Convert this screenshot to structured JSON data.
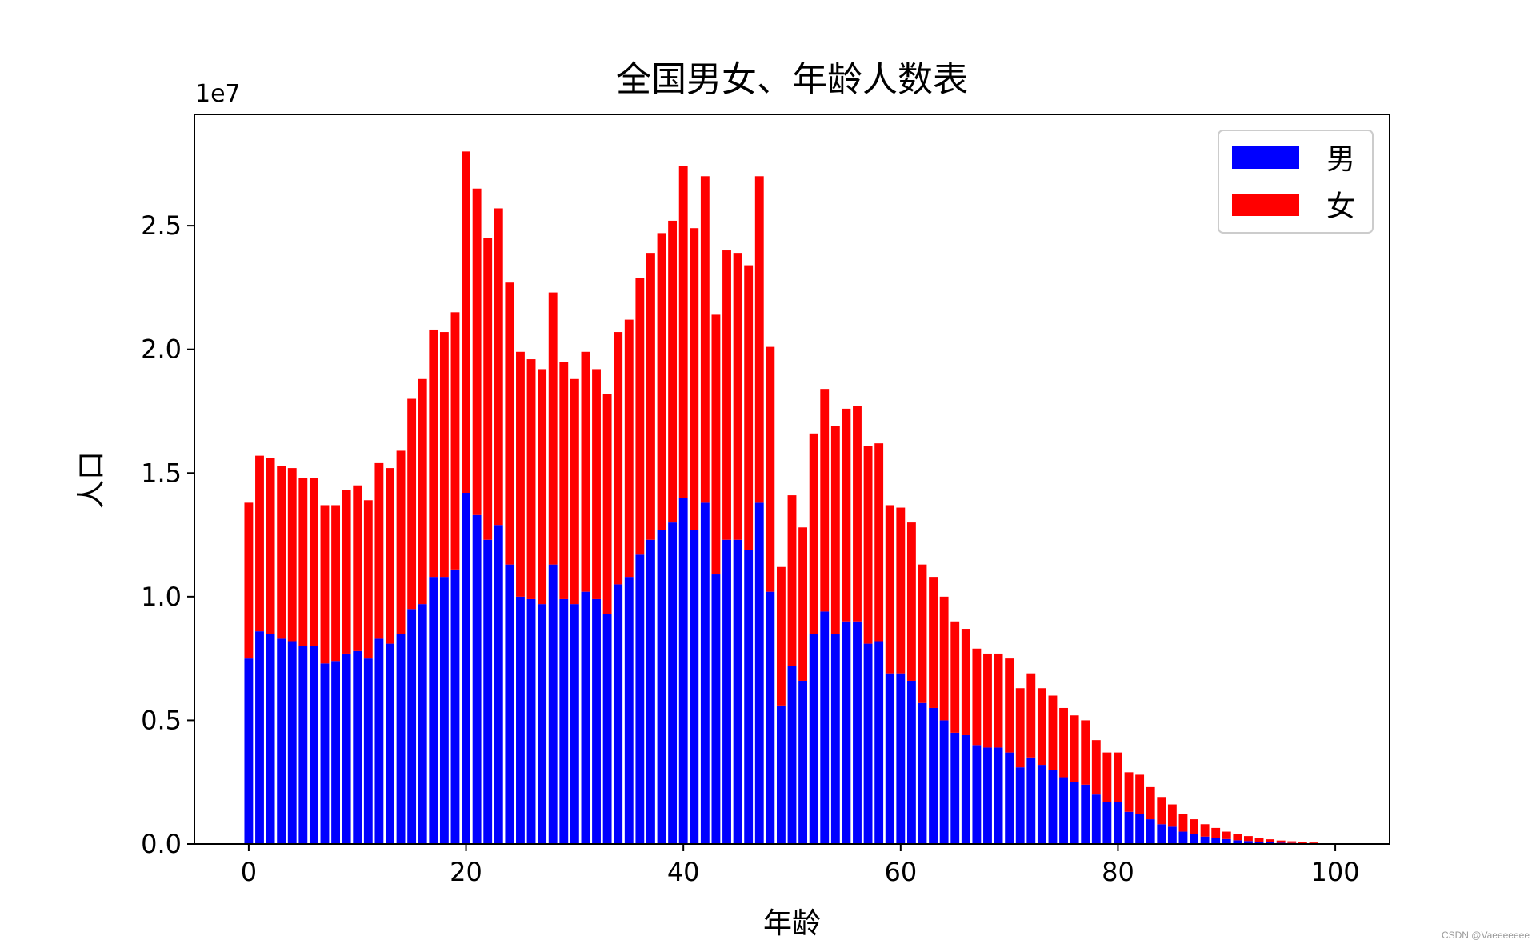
{
  "chart_data": {
    "type": "bar",
    "stacked": true,
    "title": "全国男女、年龄人数表",
    "xlabel": "年龄",
    "ylabel": "人口",
    "y_offset_label": "1e7",
    "xlim": [
      -5,
      105
    ],
    "ylim": [
      0,
      2.95
    ],
    "xticks": [
      "0",
      "20",
      "40",
      "60",
      "80",
      "100"
    ],
    "yticks": [
      "0.0",
      "0.5",
      "1.0",
      "1.5",
      "2.0",
      "2.5"
    ],
    "grid": false,
    "legend_position": "top-right",
    "x": [
      0,
      1,
      2,
      3,
      4,
      5,
      6,
      7,
      8,
      9,
      10,
      11,
      12,
      13,
      14,
      15,
      16,
      17,
      18,
      19,
      20,
      21,
      22,
      23,
      24,
      25,
      26,
      27,
      28,
      29,
      30,
      31,
      32,
      33,
      34,
      35,
      36,
      37,
      38,
      39,
      40,
      41,
      42,
      43,
      44,
      45,
      46,
      47,
      48,
      49,
      50,
      51,
      52,
      53,
      54,
      55,
      56,
      57,
      58,
      59,
      60,
      61,
      62,
      63,
      64,
      65,
      66,
      67,
      68,
      69,
      70,
      71,
      72,
      73,
      74,
      75,
      76,
      77,
      78,
      79,
      80,
      81,
      82,
      83,
      84,
      85,
      86,
      87,
      88,
      89,
      90,
      91,
      92,
      93,
      94,
      95,
      96,
      97,
      98,
      99,
      100
    ],
    "series": [
      {
        "name": "男",
        "color": "#0000ff",
        "values": [
          0.75,
          0.86,
          0.85,
          0.83,
          0.82,
          0.8,
          0.8,
          0.73,
          0.74,
          0.77,
          0.78,
          0.75,
          0.83,
          0.81,
          0.85,
          0.95,
          0.97,
          1.08,
          1.08,
          1.11,
          1.42,
          1.33,
          1.23,
          1.29,
          1.13,
          1.0,
          0.99,
          0.97,
          1.13,
          0.99,
          0.97,
          1.02,
          0.99,
          0.93,
          1.05,
          1.08,
          1.17,
          1.23,
          1.27,
          1.3,
          1.4,
          1.27,
          1.38,
          1.09,
          1.23,
          1.23,
          1.19,
          1.38,
          1.02,
          0.56,
          0.72,
          0.66,
          0.85,
          0.94,
          0.85,
          0.9,
          0.9,
          0.81,
          0.82,
          0.69,
          0.69,
          0.66,
          0.57,
          0.55,
          0.5,
          0.45,
          0.44,
          0.4,
          0.39,
          0.39,
          0.37,
          0.31,
          0.35,
          0.32,
          0.3,
          0.27,
          0.25,
          0.24,
          0.2,
          0.17,
          0.17,
          0.13,
          0.12,
          0.1,
          0.08,
          0.07,
          0.05,
          0.04,
          0.03,
          0.025,
          0.02,
          0.015,
          0.012,
          0.009,
          0.007,
          0.005,
          0.004,
          0.003,
          0.002,
          0.001,
          0.001
        ]
      },
      {
        "name": "女",
        "color": "#ff0000",
        "values": [
          0.63,
          0.71,
          0.71,
          0.7,
          0.7,
          0.68,
          0.68,
          0.64,
          0.63,
          0.66,
          0.67,
          0.64,
          0.71,
          0.71,
          0.74,
          0.85,
          0.91,
          1.0,
          0.99,
          1.04,
          1.38,
          1.32,
          1.22,
          1.28,
          1.14,
          0.99,
          0.97,
          0.95,
          1.1,
          0.96,
          0.91,
          0.97,
          0.93,
          0.89,
          1.02,
          1.04,
          1.12,
          1.16,
          1.2,
          1.22,
          1.34,
          1.22,
          1.32,
          1.05,
          1.17,
          1.16,
          1.15,
          1.32,
          0.99,
          0.56,
          0.69,
          0.62,
          0.81,
          0.9,
          0.84,
          0.86,
          0.87,
          0.8,
          0.8,
          0.68,
          0.67,
          0.64,
          0.56,
          0.53,
          0.5,
          0.45,
          0.43,
          0.39,
          0.38,
          0.38,
          0.38,
          0.32,
          0.34,
          0.31,
          0.3,
          0.28,
          0.27,
          0.26,
          0.22,
          0.2,
          0.2,
          0.16,
          0.16,
          0.13,
          0.11,
          0.09,
          0.07,
          0.06,
          0.05,
          0.04,
          0.03,
          0.025,
          0.02,
          0.016,
          0.012,
          0.009,
          0.007,
          0.005,
          0.004,
          0.002,
          0.001
        ]
      }
    ]
  },
  "watermark": "CSDN @Vaeeeeeee"
}
